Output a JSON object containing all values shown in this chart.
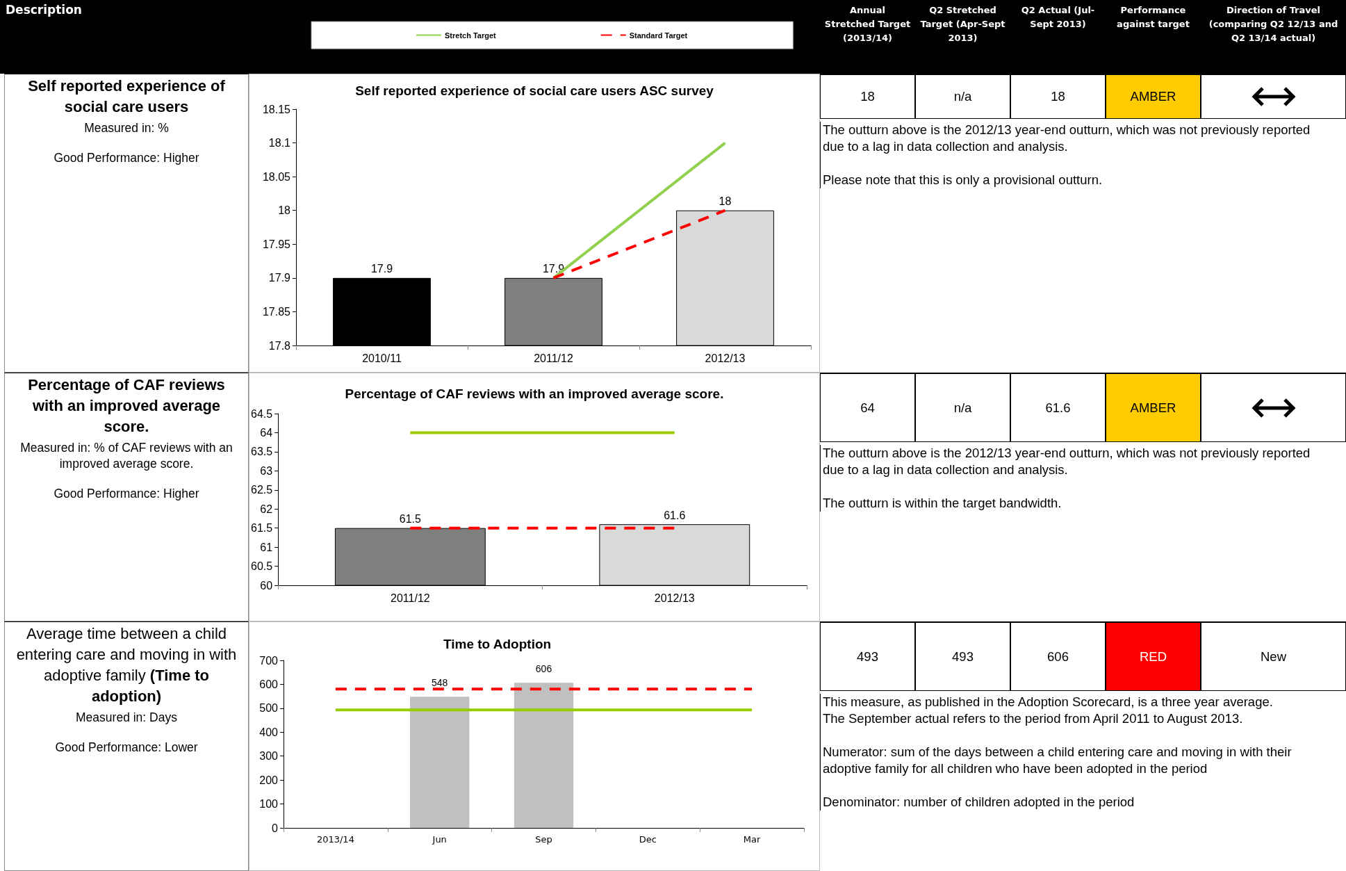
{
  "chart_data": [
    {
      "type": "other",
      "title": "Description",
      "categories": [
        "Annual Stretched Target (2013/14)",
        "Q2  Stretched Target (Apr-Sept 2013)",
        "Q2  Actual (Jul-Sept 2013)",
        "Performance against target",
        "Direction of Travel (comparing Q2 12/13 and Q2 13/14 actual)"
      ]
    },
    {
      "type": "other",
      "title": "Self reported experience of social care users",
      "annotations": [
        "Measured in:  %",
        "Good Performance: Higher"
      ]
    },
    {
      "type": "bar",
      "title": "Self reported experience of social care users ASC survey",
      "categories": [
        "2010/11",
        "2011/12",
        "2012/13"
      ],
      "series": [
        {
          "type": "bar",
          "colors": [
            "#000000",
            "#7f7f7f",
            "#d9d9d9"
          ],
          "values": [
            17.9,
            17.9,
            18
          ],
          "value_labels": [
            "17.9",
            "17.9",
            "18"
          ]
        },
        {
          "type": "line",
          "name": "Stretch Target",
          "color": "#92d050",
          "line_style": "solid",
          "values": [
            null,
            17.9,
            18.1
          ]
        },
        {
          "type": "line",
          "name": "Standard Target",
          "color": "#ff0000",
          "line_style": "dashed",
          "values": [
            null,
            17.9,
            18
          ]
        }
      ],
      "ylim": [
        17.8,
        18.15
      ],
      "yticks": [
        17.8,
        17.85,
        17.9,
        17.95,
        18,
        18.05,
        18.1,
        18.15
      ],
      "grid": false,
      "legend": "top",
      "marker": "none"
    },
    {
      "type": "other",
      "categories": [
        "18",
        "n/a",
        "18",
        "AMBER",
        null
      ],
      "colors": [
        "#ffffff",
        "#ffffff",
        "#ffffff",
        "#ffcc00",
        "#ffffff"
      ],
      "annotations": [
        "The outturn above is the 2012/13 year-end outturn, which was not previously reported due to a lag in data collection and analysis.",
        "Please note that this is only a provisional outturn."
      ]
    },
    {
      "type": "other",
      "title": "Percentage of CAF reviews with an improved average score.",
      "annotations": [
        "Measured in: % of CAF reviews with an improved average score.",
        "Good Performance: Higher"
      ]
    },
    {
      "type": "bar",
      "title": "Percentage of CAF reviews with an improved average score.",
      "categories": [
        "2011/12",
        "2012/13"
      ],
      "series": [
        {
          "type": "bar",
          "colors": [
            "#7f7f7f",
            "#d9d9d9"
          ],
          "values": [
            61.5,
            61.6
          ],
          "value_labels": [
            "61.5",
            "61.6"
          ]
        },
        {
          "type": "line",
          "color": "#99cc00",
          "line_style": "solid",
          "values": [
            64,
            64
          ]
        },
        {
          "type": "line",
          "color": "#ff0000",
          "line_style": "dashed",
          "values": [
            61.5,
            61.5
          ]
        }
      ],
      "ylim": [
        60,
        64.5
      ],
      "yticks": [
        60,
        60.5,
        61,
        61.5,
        62,
        62.5,
        63,
        63.5,
        64,
        64.5
      ],
      "grid": false,
      "marker": "none"
    },
    {
      "type": "other",
      "categories": [
        "64",
        "n/a",
        "61.6",
        "AMBER",
        null
      ],
      "colors": [
        "#ffffff",
        "#ffffff",
        "#ffffff",
        "#ffcc00",
        "#ffffff"
      ],
      "annotations": [
        "The outturn above is the 2012/13 year-end outturn, which was not previously reported due to a lag in data collection and analysis.",
        "The outturn is within the target bandwidth."
      ]
    },
    {
      "type": "other",
      "title": "Average time between a child entering care and moving in with adoptive family",
      "subtitle": "(Time to adoption)",
      "annotations": [
        "Measured in: Days",
        "Good Performance: Lower"
      ]
    },
    {
      "type": "bar",
      "title": "Time to Adoption",
      "categories": [
        "2013/14",
        "Jun",
        "Sep",
        "Dec",
        "Mar"
      ],
      "series": [
        {
          "type": "bar",
          "color": "#c0c0c0",
          "values": [
            null,
            548,
            606,
            null,
            null
          ],
          "value_labels": [
            null,
            "548",
            "606",
            null,
            null
          ]
        },
        {
          "type": "line",
          "color": "#99cc00",
          "line_style": "solid",
          "values": [
            493,
            493,
            493,
            493,
            493
          ]
        },
        {
          "type": "line",
          "color": "#ff0000",
          "line_style": "dashed",
          "values": [
            580,
            580,
            580,
            580,
            580
          ]
        }
      ],
      "ylim": [
        0,
        700
      ],
      "yticks": [
        0,
        100,
        200,
        300,
        400,
        500,
        600,
        700
      ],
      "grid": false,
      "marker": "none"
    },
    {
      "type": "other",
      "categories": [
        "493",
        "493",
        "606",
        "RED",
        "New"
      ],
      "colors": [
        "#ffffff",
        "#ffffff",
        "#ffffff",
        "#ff0000",
        "#ffffff"
      ],
      "annotations": [
        "This measure, as published in the Adoption Scorecard, is a three year average.\nThe September actual refers to the period from April 2011 to August 2013.",
        "Numerator: sum of the days between a child entering care and moving in with their adoptive family for all children who have been adopted in the period",
        "Denominator: number of children adopted in the period"
      ]
    }
  ]
}
